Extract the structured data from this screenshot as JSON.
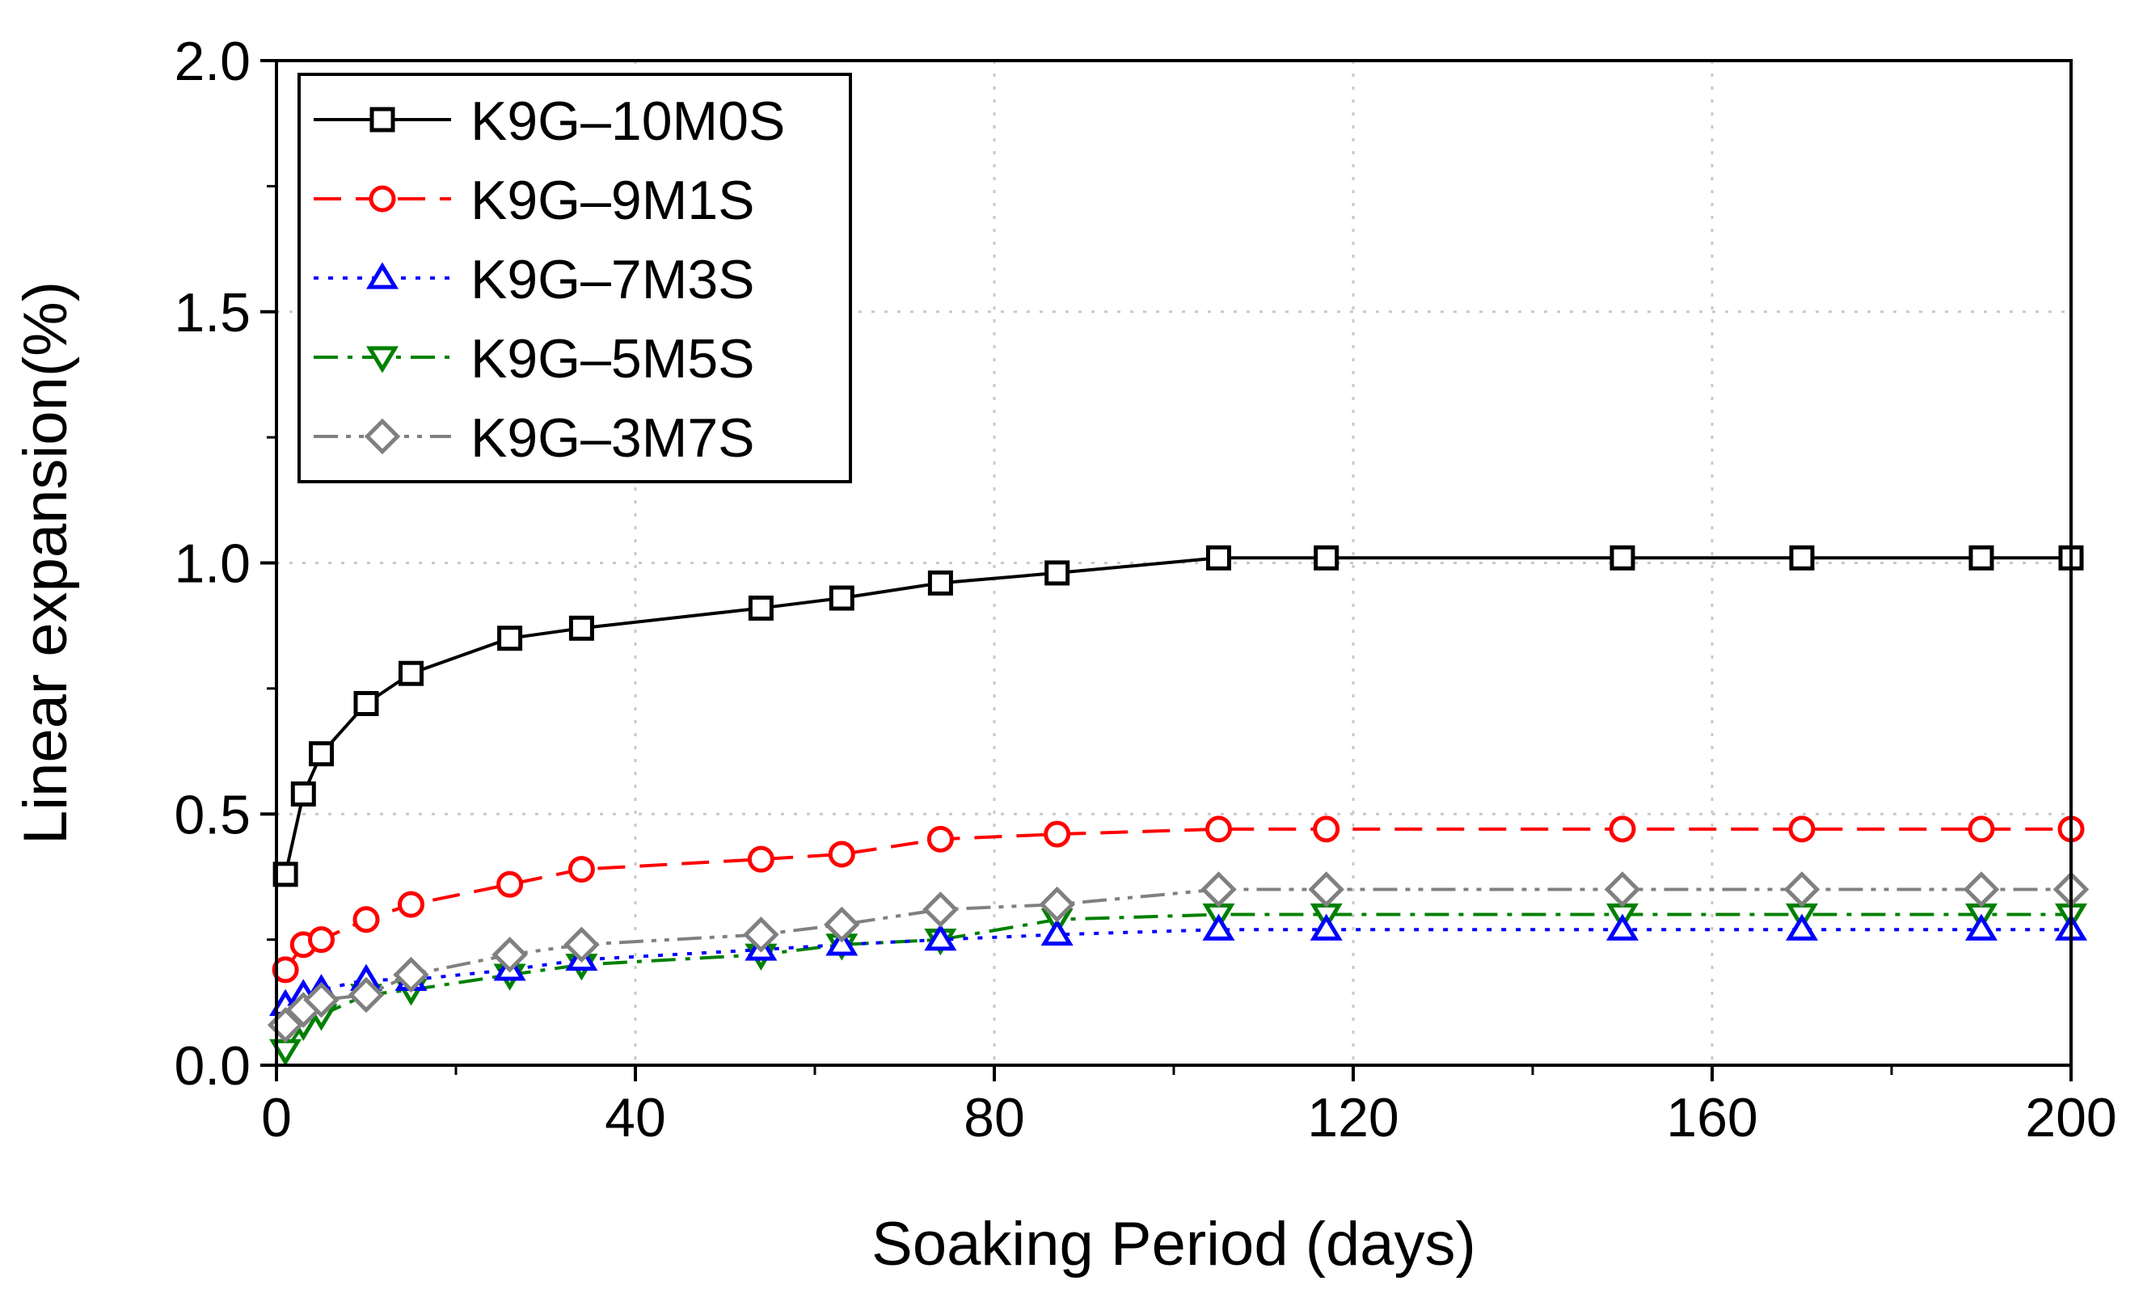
{
  "chart_data": {
    "type": "line",
    "title": "",
    "xlabel": "Soaking Period (days)",
    "ylabel": "Linear expansion(%)",
    "xlim": [
      0,
      200
    ],
    "ylim": [
      0.0,
      2.0
    ],
    "xticks": [
      "0",
      "40",
      "80",
      "120",
      "160",
      "200"
    ],
    "yticks": [
      "0.0",
      "0.5",
      "1.0",
      "1.5",
      "2.0"
    ],
    "grid": true,
    "legend_position": "top-left",
    "x": [
      1,
      3,
      5,
      10,
      15,
      26,
      34,
      54,
      63,
      74,
      87,
      105,
      117,
      150,
      170,
      190,
      200
    ],
    "series": [
      {
        "name": "K9G–10M0S",
        "color": "#000000",
        "marker": "square",
        "line_style": "solid",
        "values": [
          0.38,
          0.54,
          0.62,
          0.72,
          0.78,
          0.85,
          0.87,
          0.91,
          0.93,
          0.96,
          0.98,
          1.01,
          1.01,
          1.01,
          1.01,
          1.01,
          1.01
        ]
      },
      {
        "name": "K9G–9M1S",
        "color": "#ff0000",
        "marker": "circle",
        "line_style": "dashed",
        "values": [
          0.19,
          0.24,
          0.25,
          0.29,
          0.32,
          0.36,
          0.39,
          0.41,
          0.42,
          0.45,
          0.46,
          0.47,
          0.47,
          0.47,
          0.47,
          0.47,
          0.47
        ]
      },
      {
        "name": "K9G–7M3S",
        "color": "#0000ff",
        "marker": "triangle-up",
        "line_style": "dotted",
        "values": [
          0.12,
          0.14,
          0.15,
          0.17,
          0.17,
          0.19,
          0.21,
          0.23,
          0.24,
          0.25,
          0.26,
          0.27,
          0.27,
          0.27,
          0.27,
          0.27,
          0.27
        ]
      },
      {
        "name": "K9G–5M5S",
        "color": "#008000",
        "marker": "triangle-down",
        "line_style": "dash-dot",
        "values": [
          0.03,
          0.08,
          0.1,
          0.14,
          0.15,
          0.18,
          0.2,
          0.22,
          0.24,
          0.25,
          0.29,
          0.3,
          0.3,
          0.3,
          0.3,
          0.3,
          0.3
        ]
      },
      {
        "name": "K9G–3M7S",
        "color": "#808080",
        "marker": "diamond",
        "line_style": "dash-dot-dot",
        "values": [
          0.08,
          0.11,
          0.13,
          0.14,
          0.18,
          0.22,
          0.24,
          0.26,
          0.28,
          0.31,
          0.32,
          0.35,
          0.35,
          0.35,
          0.35,
          0.35,
          0.35
        ]
      }
    ]
  }
}
